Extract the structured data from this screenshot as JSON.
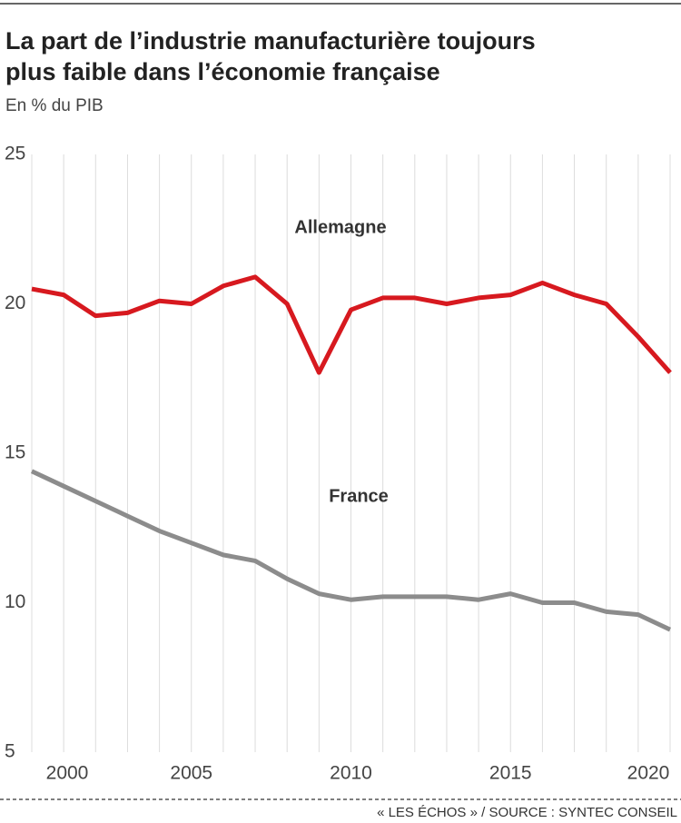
{
  "chart_data": {
    "type": "line",
    "title": [
      "La part de l’industrie manufacturière toujours",
      "plus faible dans l’économie française"
    ],
    "subtitle": "En % du PIB",
    "source": "« LES ÉCHOS » / SOURCE : SYNTEC CONSEIL",
    "x": [
      2000,
      2001,
      2002,
      2003,
      2004,
      2005,
      2006,
      2007,
      2008,
      2009,
      2010,
      2011,
      2012,
      2013,
      2014,
      2015,
      2016,
      2017,
      2018,
      2019,
      2020
    ],
    "xlim": [
      2000,
      2020
    ],
    "xticks": [
      2000,
      2005,
      2010,
      2015,
      2020
    ],
    "ylim": [
      5,
      25
    ],
    "yticks": [
      5,
      10,
      15,
      20,
      25
    ],
    "series": [
      {
        "name": "Allemagne",
        "color": "#d7191f",
        "values": [
          20.5,
          20.3,
          19.6,
          19.7,
          20.1,
          20.0,
          20.6,
          20.9,
          20.0,
          17.7,
          19.8,
          20.2,
          20.2,
          20.0,
          20.2,
          20.3,
          20.7,
          20.3,
          20.0,
          18.9,
          17.7
        ]
      },
      {
        "name": "France",
        "color": "#8c8c8c",
        "values": [
          14.4,
          13.9,
          13.4,
          12.9,
          12.4,
          12.0,
          11.6,
          11.4,
          10.8,
          10.3,
          10.1,
          10.2,
          10.2,
          10.2,
          10.1,
          10.3,
          10.0,
          10.0,
          9.7,
          9.6,
          9.1
        ]
      }
    ]
  }
}
